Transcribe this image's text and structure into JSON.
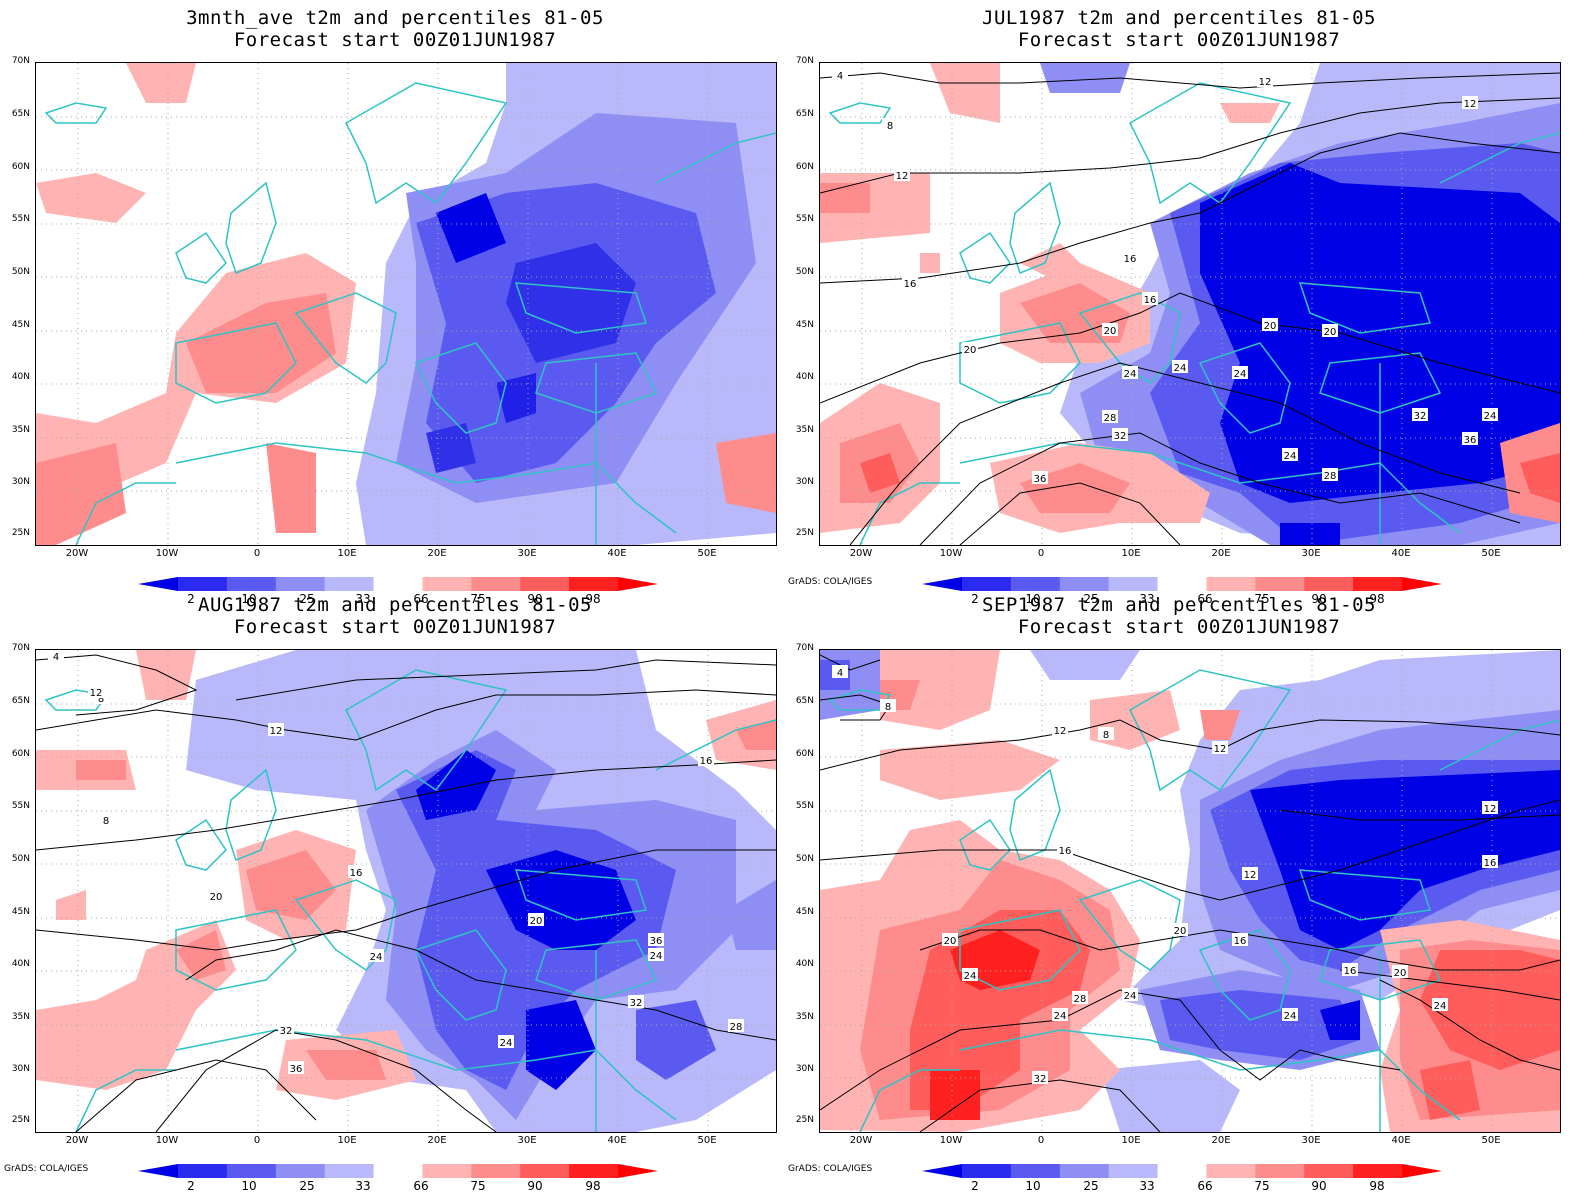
{
  "panels": [
    {
      "title_line1": "3mnth_ave t2m and percentiles 81-05",
      "title_line2": "Forecast start 00Z01JUN1987",
      "credit": ""
    },
    {
      "title_line1": "JUL1987 t2m and percentiles 81-05",
      "title_line2": "Forecast start 00Z01JUN1987",
      "credit": "GrADS: COLA/IGES"
    },
    {
      "title_line1": "AUG1987 t2m and percentiles 81-05",
      "title_line2": "Forecast start 00Z01JUN1987",
      "credit": "GrADS: COLA/IGES"
    },
    {
      "title_line1": "SEP1987 t2m and percentiles 81-05",
      "title_line2": "Forecast start 00Z01JUN1987",
      "credit": "GrADS: COLA/IGES"
    }
  ],
  "lat_labels": [
    "70N",
    "65N",
    "60N",
    "55N",
    "50N",
    "45N",
    "40N",
    "35N",
    "30N",
    "25N"
  ],
  "lon_labels": [
    "20W",
    "10W",
    "0",
    "10E",
    "20E",
    "30E",
    "40E",
    "50E"
  ],
  "colorbar": {
    "labels": [
      "2",
      "10",
      "25",
      "33",
      "66",
      "75",
      "90",
      "98"
    ],
    "colors": [
      "#0000e6",
      "#2b2bf0",
      "#5a5af0",
      "#8e8ef5",
      "#b8b8fa",
      "#ffffff",
      "#ffb3b3",
      "#ff8c8c",
      "#ff5c5c",
      "#ff2020",
      "#ff0000"
    ]
  },
  "colors": {
    "coastline": "#2ec4c4",
    "contour": "#000000",
    "grid": "#aaaaaa"
  },
  "contour_labels": {
    "p1": [
      "4",
      "8",
      "12",
      "12",
      "12",
      "16",
      "16",
      "16",
      "20",
      "20",
      "20",
      "20",
      "24",
      "24",
      "24",
      "24",
      "24",
      "28",
      "28",
      "32",
      "32",
      "36",
      "36"
    ],
    "p2": [
      "4",
      "8",
      "8",
      "12",
      "12",
      "16",
      "16",
      "20",
      "20",
      "24",
      "24",
      "24",
      "28",
      "32",
      "32",
      "36",
      "36"
    ],
    "p3": [
      "4",
      "8",
      "8",
      "12",
      "12",
      "12",
      "12",
      "16",
      "16",
      "16",
      "16",
      "20",
      "20",
      "20",
      "24",
      "24",
      "24",
      "24",
      "24",
      "28",
      "32"
    ]
  }
}
